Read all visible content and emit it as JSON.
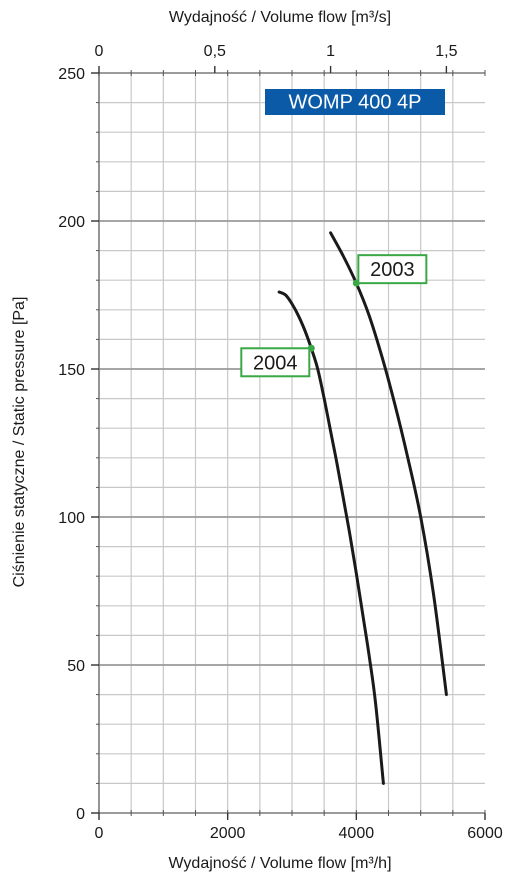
{
  "chart_data": {
    "type": "line",
    "title": "WOMP 400 4P",
    "title_color": "#0a5aa8",
    "xlabel": "Wydajność / Volume flow [m³/h]",
    "x2label": "Wydajność / Volume flow [m³/s]",
    "ylabel": "Ciśnienie statyczne / Static pressure [Pa]",
    "xlim": [
      0,
      6000
    ],
    "x2lim": [
      0,
      1.6667
    ],
    "ylim": [
      0,
      250
    ],
    "x_ticks": [
      {
        "value": 0,
        "label": "0"
      },
      {
        "value": 2000,
        "label": "2000"
      },
      {
        "value": 4000,
        "label": "4000"
      },
      {
        "value": 6000,
        "label": "6000"
      }
    ],
    "x2_ticks": [
      {
        "value": 0,
        "label": "0"
      },
      {
        "value": 0.5,
        "label": "0,5"
      },
      {
        "value": 1,
        "label": "1"
      },
      {
        "value": 1.5,
        "label": "1,5"
      }
    ],
    "y_ticks": [
      {
        "value": 0,
        "label": "0"
      },
      {
        "value": 50,
        "label": "50"
      },
      {
        "value": 100,
        "label": "100"
      },
      {
        "value": 150,
        "label": "150"
      },
      {
        "value": 200,
        "label": "200"
      },
      {
        "value": 250,
        "label": "250"
      }
    ],
    "grid": true,
    "line_color": "#1a1a1a",
    "marker_color": "#3aa845",
    "series": [
      {
        "name": "2004",
        "x": [
          2800,
          2900,
          3000,
          3100,
          3200,
          3300,
          3400,
          3500,
          3600,
          3700,
          3800,
          3900,
          4000,
          4100,
          4200,
          4300,
          4420
        ],
        "y": [
          176,
          175,
          172,
          168,
          163,
          157,
          150,
          140,
          129,
          118,
          106,
          94,
          81,
          67,
          53,
          37,
          10
        ],
        "operating_point": {
          "x": 3300,
          "y": 157
        }
      },
      {
        "name": "2003",
        "x": [
          3600,
          3800,
          4000,
          4200,
          4400,
          4600,
          4800,
          5000,
          5200,
          5400
        ],
        "y": [
          196,
          188,
          179,
          168,
          154,
          138,
          120,
          100,
          74,
          40
        ],
        "operating_point": {
          "x": 4000,
          "y": 179
        }
      }
    ]
  }
}
